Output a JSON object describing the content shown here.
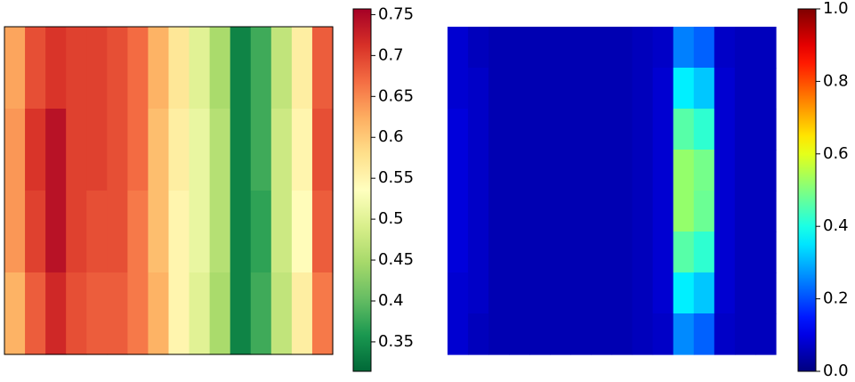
{
  "chart_data": [
    {
      "type": "heatmap",
      "colormap": "RdYlGn",
      "zlim": [
        0.314,
        0.757
      ],
      "zticks": [
        0.35,
        0.4,
        0.45,
        0.5,
        0.55,
        0.6,
        0.65,
        0.7,
        0.75
      ],
      "z": [
        [
          0.63,
          0.69,
          0.71,
          0.7,
          0.7,
          0.69,
          0.67,
          0.62,
          0.57,
          0.5,
          0.45,
          0.34,
          0.38,
          0.47,
          0.56,
          0.68
        ],
        [
          0.64,
          0.71,
          0.74,
          0.7,
          0.7,
          0.69,
          0.67,
          0.61,
          0.56,
          0.51,
          0.46,
          0.34,
          0.38,
          0.48,
          0.55,
          0.69
        ],
        [
          0.64,
          0.7,
          0.74,
          0.7,
          0.69,
          0.69,
          0.66,
          0.61,
          0.55,
          0.51,
          0.46,
          0.34,
          0.37,
          0.48,
          0.54,
          0.68
        ],
        [
          0.62,
          0.68,
          0.72,
          0.69,
          0.68,
          0.68,
          0.66,
          0.62,
          0.55,
          0.5,
          0.45,
          0.34,
          0.38,
          0.47,
          0.56,
          0.66
        ]
      ]
    },
    {
      "type": "heatmap",
      "colormap": "jet",
      "zlim": [
        0,
        1
      ],
      "zticks": [
        {
          "value": 0,
          "label": "0.0"
        },
        0.2,
        0.4,
        0.6,
        0.8,
        {
          "value": 1,
          "label": "1.0"
        }
      ],
      "z": [
        [
          0.08,
          0.06,
          0.05,
          0.05,
          0.05,
          0.05,
          0.05,
          0.05,
          0.05,
          0.06,
          0.07,
          0.25,
          0.22,
          0.07,
          0.06,
          0.06
        ],
        [
          0.08,
          0.07,
          0.05,
          0.05,
          0.05,
          0.05,
          0.05,
          0.05,
          0.05,
          0.06,
          0.08,
          0.36,
          0.32,
          0.08,
          0.06,
          0.06
        ],
        [
          0.09,
          0.07,
          0.05,
          0.05,
          0.05,
          0.05,
          0.05,
          0.05,
          0.05,
          0.06,
          0.08,
          0.46,
          0.42,
          0.08,
          0.06,
          0.06
        ],
        [
          0.09,
          0.07,
          0.05,
          0.05,
          0.05,
          0.05,
          0.05,
          0.05,
          0.05,
          0.06,
          0.08,
          0.52,
          0.49,
          0.08,
          0.06,
          0.06
        ],
        [
          0.09,
          0.07,
          0.05,
          0.05,
          0.05,
          0.05,
          0.05,
          0.05,
          0.05,
          0.06,
          0.08,
          0.52,
          0.48,
          0.08,
          0.06,
          0.06
        ],
        [
          0.09,
          0.07,
          0.05,
          0.05,
          0.05,
          0.05,
          0.05,
          0.05,
          0.05,
          0.06,
          0.08,
          0.46,
          0.42,
          0.08,
          0.06,
          0.06
        ],
        [
          0.08,
          0.07,
          0.05,
          0.05,
          0.05,
          0.05,
          0.05,
          0.05,
          0.05,
          0.06,
          0.08,
          0.36,
          0.32,
          0.08,
          0.06,
          0.06
        ],
        [
          0.08,
          0.06,
          0.05,
          0.05,
          0.05,
          0.05,
          0.05,
          0.05,
          0.05,
          0.06,
          0.07,
          0.26,
          0.22,
          0.07,
          0.06,
          0.06
        ]
      ]
    }
  ]
}
